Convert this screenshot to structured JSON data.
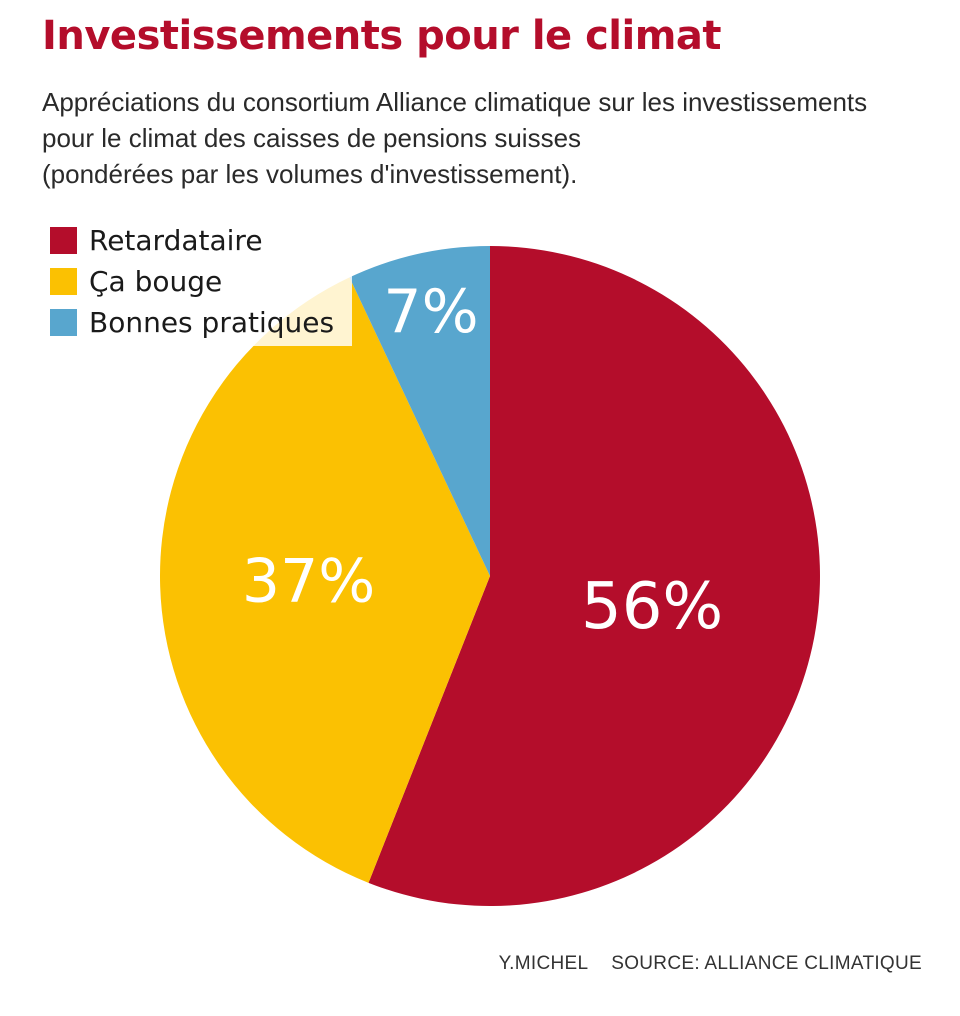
{
  "chart_data": {
    "type": "pie",
    "title": "Investissements pour le climat",
    "subtitle_lines": [
      "Appréciations du consortium Alliance climatique sur les investissements",
      "pour le climat des caisses de pensions suisses",
      "(pondérées par les volumes d'investissement)."
    ],
    "slices": [
      {
        "label": "Retardataire",
        "value": 56,
        "display": "56%",
        "color": "#B40D2B"
      },
      {
        "label": "Ça bouge",
        "value": 37,
        "display": "37%",
        "color": "#FBC102"
      },
      {
        "label": "Bonnes pratiques",
        "value": 7,
        "display": "7%",
        "color": "#58A6CE"
      }
    ],
    "legend_position": "top-left",
    "label_color": "#ffffff"
  },
  "colors": {
    "title": "#B40D2B"
  },
  "credit": {
    "author": "Y.MICHEL",
    "source": "SOURCE: ALLIANCE CLIMATIQUE"
  }
}
